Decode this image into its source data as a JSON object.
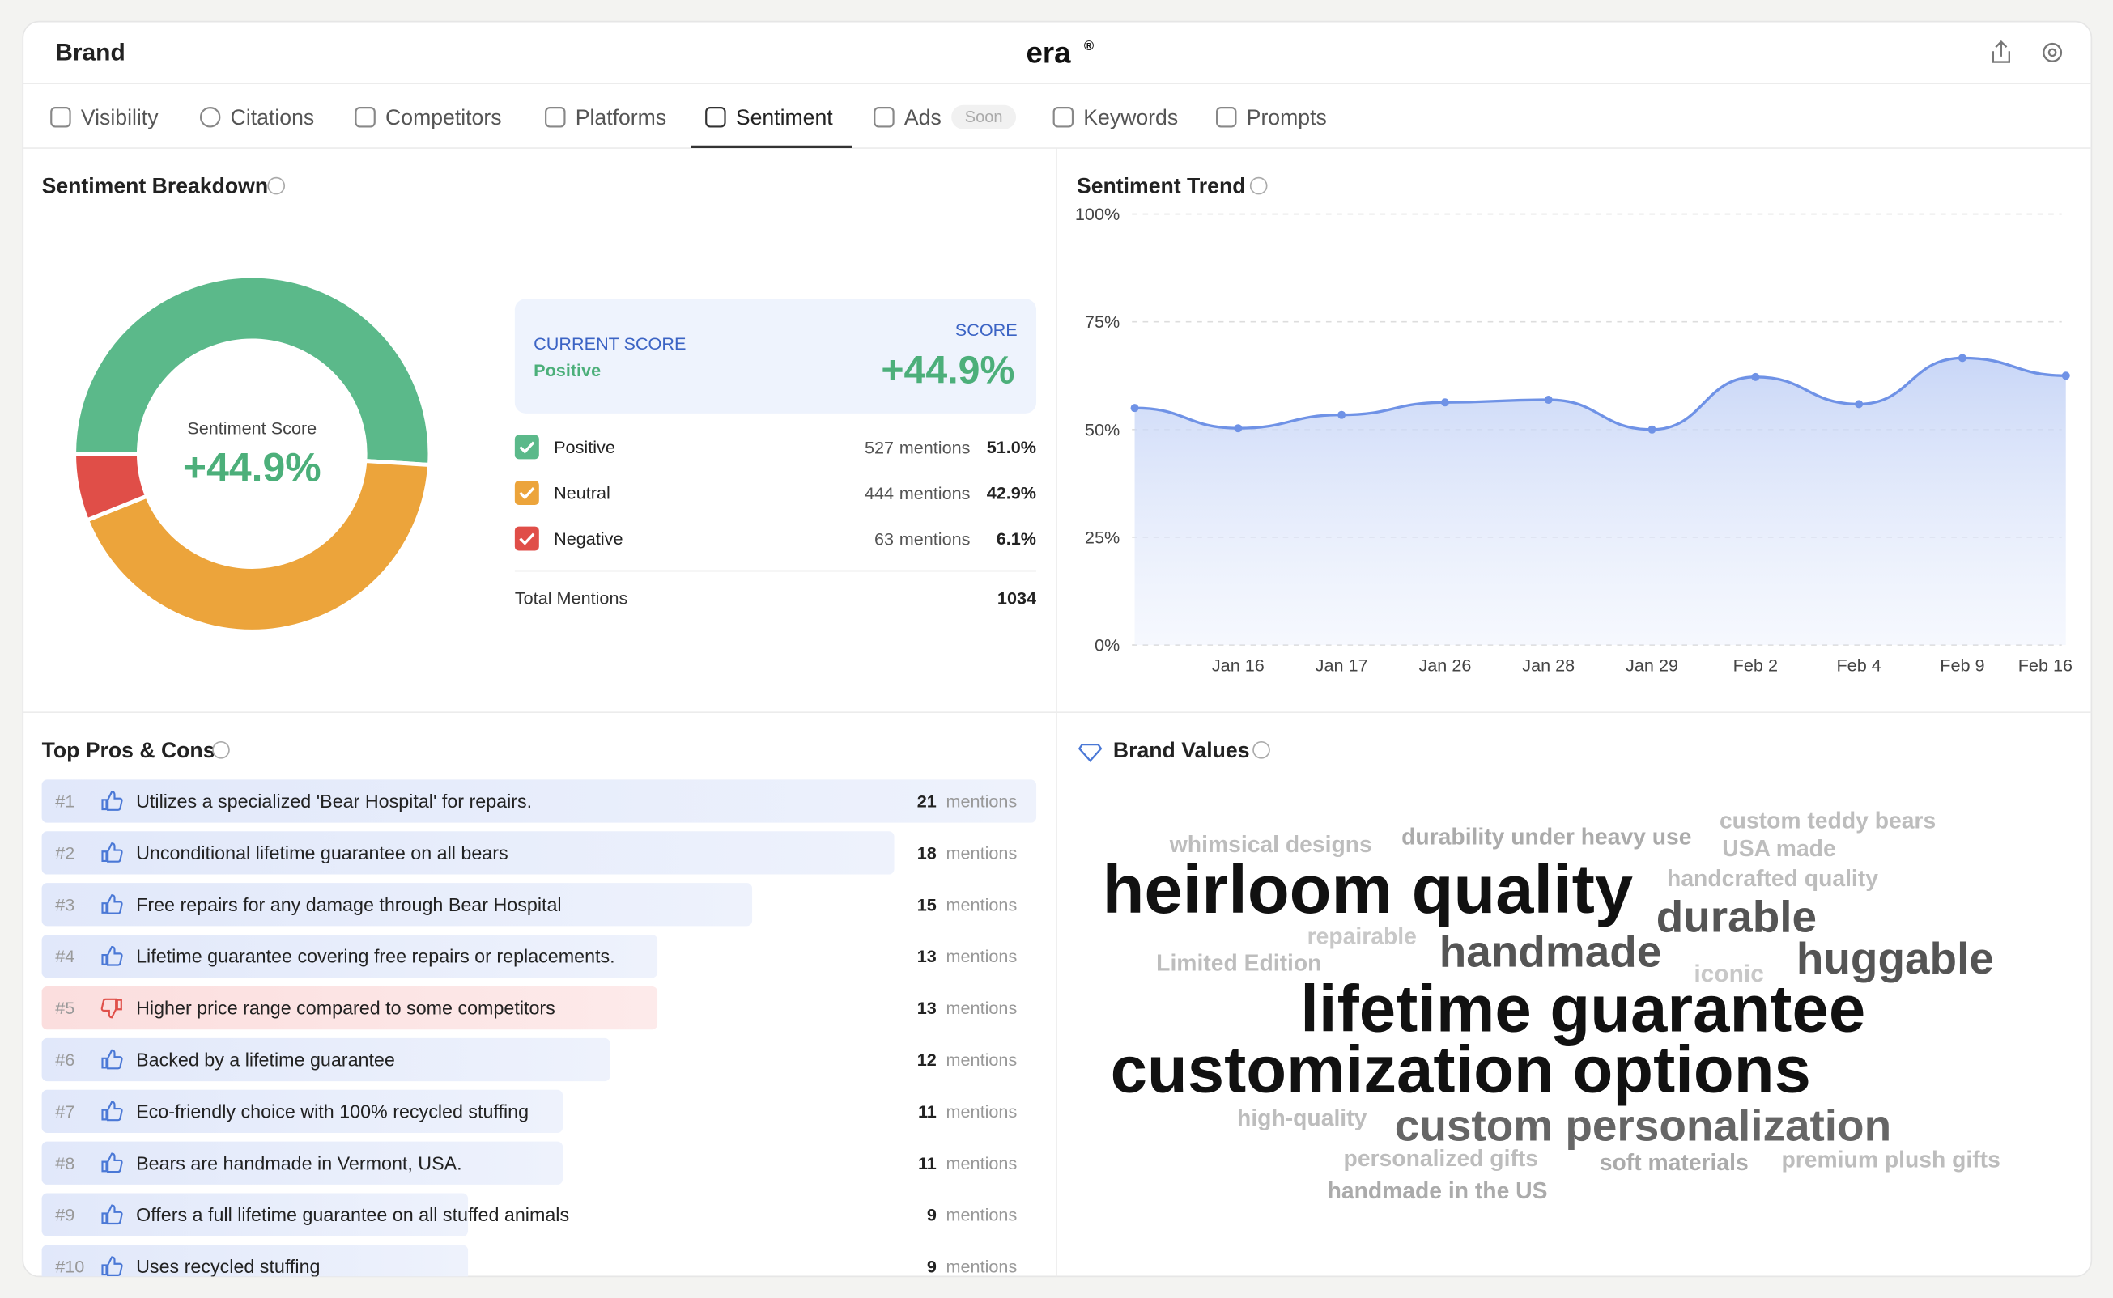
{
  "header": {
    "title": "Brand",
    "logo": "era",
    "logo_mark": "®"
  },
  "tabs": [
    "Visibility",
    "Citations",
    "Competitors",
    "Platforms",
    "Sentiment",
    "Ads",
    "Keywords",
    "Prompts"
  ],
  "active_tab": 4,
  "ads_badge": "Soon",
  "chart_data": [
    {
      "type": "donut",
      "title": "Sentiment Breakdown",
      "center_label": "Sentiment Score",
      "center_value": "+44.9%",
      "categories": [
        "Positive",
        "Neutral",
        "Negative"
      ],
      "values": [
        51.0,
        42.9,
        6.1
      ],
      "value_labels": [
        "51.0%",
        "42.9%",
        "6.1%"
      ],
      "mentions": [
        527,
        444,
        63
      ],
      "colors": [
        "#5bb98a",
        "#eca43b",
        "#e04e48"
      ]
    },
    {
      "type": "line",
      "title": "Sentiment Trend",
      "categories": [
        null,
        "Jan 16",
        "Jan 17",
        "Jan 26",
        "Jan 28",
        "Jan 29",
        "Feb 2",
        "Feb 4",
        "Feb 9",
        "Feb 16"
      ],
      "series": [
        {
          "name": "Sentiment",
          "color": "#6f92e6",
          "values": [
            55,
            50.3,
            53.4,
            56.3,
            56.9,
            50,
            62.2,
            55.9,
            66.6,
            62.5
          ]
        }
      ],
      "ylim": [
        0,
        100
      ],
      "yticks": [
        {
          "value": 0,
          "label": "0%"
        },
        {
          "value": 25,
          "label": "25%"
        },
        {
          "value": 50,
          "label": "50%"
        },
        {
          "value": 75,
          "label": "75%"
        },
        {
          "value": 100,
          "label": "100%"
        }
      ],
      "grid": true
    }
  ],
  "score_card": {
    "current_label": "CURRENT SCORE",
    "current_value": "Positive",
    "score_label": "SCORE",
    "score": "+44.9%"
  },
  "mentions_unit": "mentions",
  "total": {
    "label": "Total Mentions",
    "value": 1034
  },
  "pros_cons": {
    "title": "Top Pros & Cons",
    "items": [
      {
        "rank": "#1",
        "text": "Utilizes a specialized 'Bear Hospital' for repairs.",
        "mentions": 21,
        "kind": "pro"
      },
      {
        "rank": "#2",
        "text": "Unconditional lifetime guarantee on all bears",
        "mentions": 18,
        "kind": "pro"
      },
      {
        "rank": "#3",
        "text": "Free repairs for any damage through Bear Hospital",
        "mentions": 15,
        "kind": "pro"
      },
      {
        "rank": "#4",
        "text": "Lifetime guarantee covering free repairs or replacements.",
        "mentions": 13,
        "kind": "pro"
      },
      {
        "rank": "#5",
        "text": "Higher price range compared to some competitors",
        "mentions": 13,
        "kind": "con"
      },
      {
        "rank": "#6",
        "text": "Backed by a lifetime guarantee",
        "mentions": 12,
        "kind": "pro"
      },
      {
        "rank": "#7",
        "text": "Eco-friendly choice with 100% recycled stuffing",
        "mentions": 11,
        "kind": "pro"
      },
      {
        "rank": "#8",
        "text": "Bears are handmade in Vermont, USA.",
        "mentions": 11,
        "kind": "pro"
      },
      {
        "rank": "#9",
        "text": "Offers a full lifetime guarantee on all stuffed animals",
        "mentions": 9,
        "kind": "pro"
      },
      {
        "rank": "#10",
        "text": "Uses recycled stuffing",
        "mentions": 9,
        "kind": "pro"
      }
    ]
  },
  "brand_values": {
    "title": "Brand Values",
    "words": [
      "whimsical designs",
      "durability under heavy use",
      "custom teddy bears",
      "USA made",
      "heirloom quality",
      "handcrafted quality",
      "durable",
      "repairable",
      "handmade",
      "Limited Edition",
      "iconic",
      "huggable",
      "lifetime guarantee",
      "customization options",
      "high-quality",
      "custom personalization",
      "personalized gifts",
      "soft materials",
      "premium plush gifts",
      "handmade in the US"
    ]
  }
}
